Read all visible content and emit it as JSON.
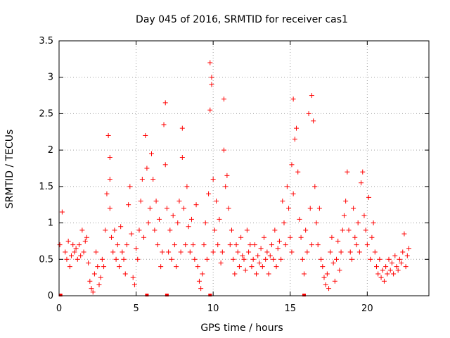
{
  "chart_data": {
    "type": "scatter",
    "title": "Day 045 of 2016, SRMTID for receiver cas1",
    "xlabel": "GPS time / hours",
    "ylabel": "SRMTID / TECUs",
    "xlim": [
      0,
      24
    ],
    "ylim": [
      0,
      3.5
    ],
    "xticks": [
      0,
      5,
      10,
      15,
      20
    ],
    "xtick_labels": [
      "0",
      "5",
      "10",
      "15",
      "20"
    ],
    "yticks": [
      0,
      0.5,
      1,
      1.5,
      2,
      2.5,
      3,
      3.5
    ],
    "ytick_labels": [
      "0",
      "0.5",
      "1",
      "1.5",
      "2",
      "2.5",
      "3",
      "3.5"
    ],
    "grid": true,
    "marker": "+",
    "series": [
      {
        "name": "SRMTID",
        "color": "#ff0000",
        "x": [
          0.05,
          0.2,
          0.4,
          0.5,
          0.6,
          0.7,
          0.8,
          0.9,
          1.0,
          1.1,
          1.2,
          1.3,
          1.4,
          1.5,
          1.6,
          1.7,
          1.8,
          1.9,
          2.0,
          2.1,
          2.2,
          2.3,
          2.4,
          2.5,
          2.6,
          2.7,
          2.8,
          2.9,
          3.0,
          3.1,
          3.2,
          3.3,
          3.3,
          3.3,
          3.4,
          3.5,
          3.6,
          3.7,
          3.8,
          3.9,
          4.0,
          4.1,
          4.2,
          4.3,
          4.4,
          4.5,
          4.6,
          4.7,
          4.8,
          4.9,
          5.0,
          5.1,
          5.2,
          5.3,
          5.4,
          5.5,
          5.6,
          5.7,
          5.8,
          5.9,
          6.0,
          6.1,
          6.2,
          6.3,
          6.4,
          6.5,
          6.6,
          6.7,
          6.8,
          6.9,
          6.9,
          7.0,
          7.1,
          7.2,
          7.3,
          7.4,
          7.5,
          7.6,
          7.7,
          7.8,
          7.9,
          8.0,
          8.0,
          8.1,
          8.2,
          8.3,
          8.4,
          8.5,
          8.6,
          8.7,
          8.8,
          8.9,
          9.0,
          9.1,
          9.2,
          9.3,
          9.4,
          9.5,
          9.6,
          9.7,
          9.8,
          9.8,
          9.9,
          9.9,
          10.0,
          10.0,
          10.1,
          10.2,
          10.3,
          10.4,
          10.5,
          10.6,
          10.7,
          10.7,
          10.8,
          10.9,
          11.0,
          11.1,
          11.2,
          11.3,
          11.4,
          11.5,
          11.6,
          11.7,
          11.8,
          11.9,
          12.0,
          12.1,
          12.2,
          12.3,
          12.4,
          12.5,
          12.6,
          12.7,
          12.8,
          12.9,
          13.0,
          13.1,
          13.2,
          13.3,
          13.4,
          13.5,
          13.6,
          13.7,
          13.8,
          13.9,
          14.0,
          14.1,
          14.2,
          14.3,
          14.4,
          14.5,
          14.6,
          14.7,
          14.8,
          14.9,
          15.0,
          15.1,
          15.1,
          15.2,
          15.2,
          15.3,
          15.4,
          15.5,
          15.6,
          15.7,
          15.8,
          15.9,
          16.0,
          16.1,
          16.2,
          16.3,
          16.4,
          16.4,
          16.5,
          16.6,
          16.7,
          16.8,
          16.9,
          17.0,
          17.1,
          17.2,
          17.3,
          17.4,
          17.5,
          17.6,
          17.7,
          17.8,
          17.9,
          18.0,
          18.1,
          18.2,
          18.3,
          18.4,
          18.5,
          18.6,
          18.7,
          18.8,
          18.9,
          19.0,
          19.1,
          19.2,
          19.3,
          19.4,
          19.5,
          19.6,
          19.7,
          19.8,
          19.9,
          20.0,
          20.1,
          20.2,
          20.3,
          20.4,
          20.5,
          20.6,
          20.7,
          20.8,
          20.9,
          21.0,
          21.1,
          21.2,
          21.3,
          21.4,
          21.5,
          21.6,
          21.7,
          21.8,
          21.9,
          22.0,
          22.1,
          22.2,
          22.3,
          22.4,
          22.5,
          22.6,
          22.7
        ],
        "y": [
          0.7,
          1.15,
          0.6,
          0.5,
          0.75,
          0.4,
          0.55,
          0.7,
          0.6,
          0.65,
          0.5,
          0.7,
          0.55,
          0.9,
          0.6,
          0.75,
          0.8,
          0.45,
          0.2,
          0.1,
          0.05,
          0.3,
          0.6,
          0.4,
          0.15,
          0.25,
          0.5,
          0.4,
          0.9,
          1.4,
          2.2,
          1.9,
          1.6,
          1.2,
          0.8,
          0.6,
          0.9,
          0.5,
          0.7,
          0.4,
          0.95,
          0.6,
          0.5,
          0.3,
          0.7,
          1.25,
          1.5,
          0.85,
          0.25,
          0.15,
          0.65,
          0.5,
          0.9,
          1.3,
          1.6,
          0.8,
          2.2,
          1.75,
          1.0,
          1.2,
          1.95,
          1.6,
          0.9,
          1.3,
          0.7,
          1.05,
          0.4,
          0.6,
          2.35,
          2.65,
          1.8,
          1.2,
          0.6,
          0.9,
          0.5,
          1.1,
          0.7,
          0.4,
          1.0,
          1.3,
          0.6,
          2.3,
          1.9,
          1.2,
          0.7,
          1.5,
          0.95,
          0.6,
          1.05,
          0.7,
          0.5,
          1.25,
          0.4,
          0.2,
          0.1,
          0.3,
          0.7,
          1.0,
          0.5,
          1.4,
          2.55,
          3.2,
          3.0,
          2.9,
          1.6,
          0.6,
          0.9,
          1.3,
          0.7,
          1.05,
          0.45,
          0.6,
          2.7,
          2.0,
          1.5,
          1.65,
          1.2,
          0.7,
          0.9,
          0.5,
          0.3,
          0.7,
          0.6,
          0.4,
          0.8,
          0.55,
          0.5,
          0.35,
          0.9,
          0.6,
          0.7,
          0.4,
          0.5,
          0.7,
          0.3,
          0.55,
          0.45,
          0.65,
          0.4,
          0.8,
          0.5,
          0.6,
          0.3,
          0.55,
          0.7,
          0.5,
          0.9,
          0.4,
          0.65,
          0.75,
          0.5,
          1.3,
          1.0,
          0.7,
          1.5,
          1.2,
          0.8,
          0.6,
          1.8,
          1.4,
          2.7,
          2.15,
          2.3,
          1.7,
          1.05,
          0.8,
          0.5,
          0.3,
          0.9,
          0.6,
          2.5,
          1.2,
          0.7,
          2.75,
          2.4,
          1.5,
          1.0,
          0.7,
          1.2,
          0.5,
          0.4,
          0.25,
          0.15,
          0.3,
          0.1,
          0.6,
          0.8,
          0.45,
          0.2,
          0.5,
          0.75,
          0.35,
          0.6,
          0.9,
          1.1,
          1.3,
          1.7,
          0.9,
          0.6,
          0.5,
          1.2,
          0.8,
          0.7,
          1.0,
          0.6,
          1.55,
          1.7,
          1.1,
          0.9,
          0.7,
          1.35,
          0.5,
          0.8,
          1.0,
          0.6,
          0.4,
          0.3,
          0.5,
          0.25,
          0.35,
          0.2,
          0.4,
          0.3,
          0.5,
          0.35,
          0.45,
          0.3,
          0.55,
          0.4,
          0.35,
          0.5,
          0.45,
          0.6,
          0.85,
          0.4,
          0.55,
          0.65
        ]
      }
    ],
    "edge_points_x": [
      0.1,
      5.7,
      7.0,
      9.8,
      15.9
    ]
  }
}
